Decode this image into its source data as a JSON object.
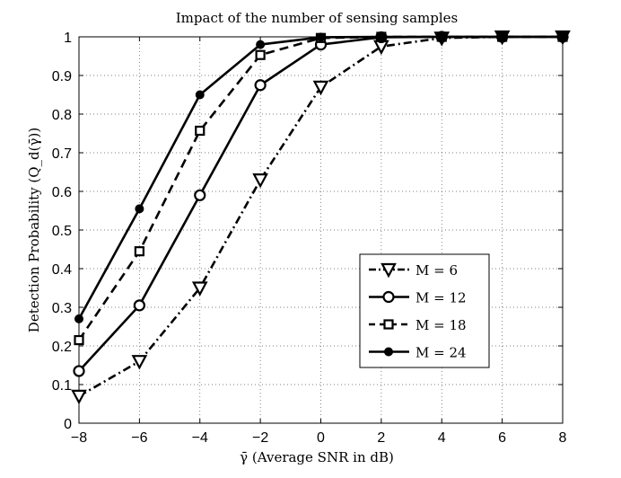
{
  "chart_data": {
    "type": "line",
    "title": "Impact of the number of sensing samples",
    "xlabel": "γ̄ (Average SNR in dB)",
    "ylabel": "Detection Probability (Q_d(γ̄))",
    "xlim": [
      -8,
      8
    ],
    "ylim": [
      0,
      1
    ],
    "xticks": [
      -8,
      -6,
      -4,
      -2,
      0,
      2,
      4,
      6,
      8
    ],
    "xtick_labels": [
      "−8",
      "−6",
      "−4",
      "−2",
      "0",
      "2",
      "4",
      "6",
      "8"
    ],
    "yticks": [
      0,
      0.1,
      0.2,
      0.3,
      0.4,
      0.5,
      0.6,
      0.7,
      0.8,
      0.9,
      1
    ],
    "ytick_labels": [
      "0",
      "0.1",
      "0.2",
      "0.3",
      "0.4",
      "0.5",
      "0.6",
      "0.7",
      "0.8",
      "0.9",
      "1"
    ],
    "grid": true,
    "legend_position": "bottom-right",
    "x": [
      -8,
      -6,
      -4,
      -2,
      0,
      2,
      4,
      6,
      8
    ],
    "series": [
      {
        "name": "M = 6",
        "marker": "triangle-down",
        "linestyle": "dashdot",
        "color": "#000000",
        "values": [
          0.07,
          0.16,
          0.35,
          0.63,
          0.87,
          0.975,
          0.997,
          1.0,
          1.0
        ]
      },
      {
        "name": "M = 12",
        "marker": "circle-open",
        "linestyle": "solid",
        "color": "#000000",
        "values": [
          0.135,
          0.305,
          0.59,
          0.875,
          0.98,
          0.999,
          1.0,
          1.0,
          1.0
        ]
      },
      {
        "name": "M = 18",
        "marker": "square-open",
        "linestyle": "dashed",
        "color": "#000000",
        "values": [
          0.215,
          0.445,
          0.757,
          0.953,
          0.997,
          1.0,
          1.0,
          1.0,
          1.0
        ]
      },
      {
        "name": "M = 24",
        "marker": "circle-filled",
        "linestyle": "solid",
        "color": "#000000",
        "values": [
          0.27,
          0.555,
          0.85,
          0.98,
          0.999,
          1.0,
          1.0,
          1.0,
          1.0
        ]
      }
    ]
  }
}
